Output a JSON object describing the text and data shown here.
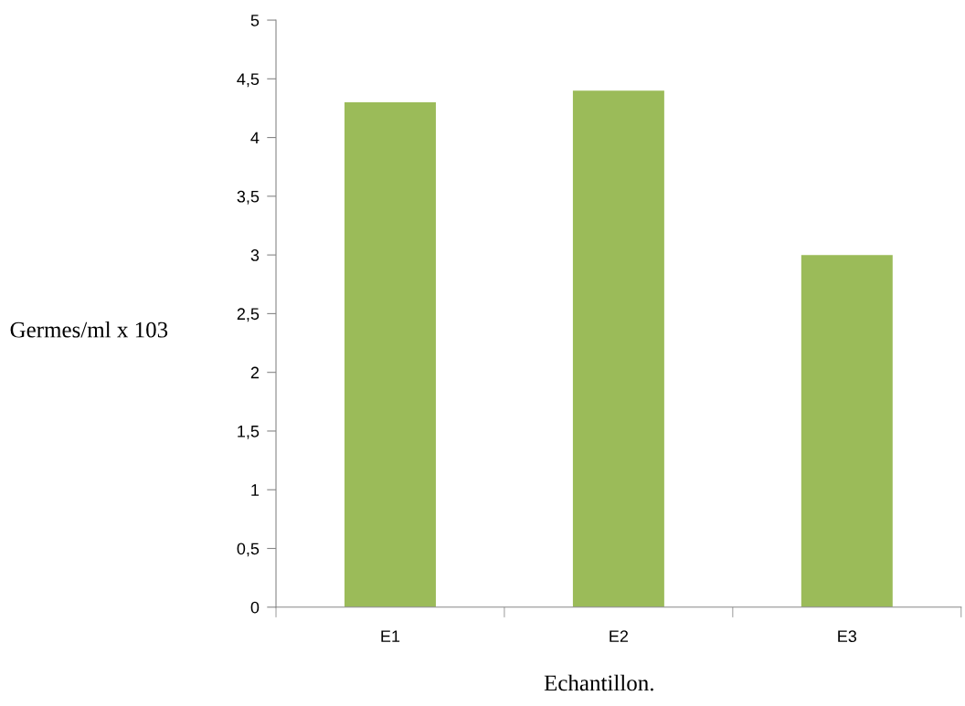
{
  "chart_data": {
    "type": "bar",
    "ylabel": "Germes/ml x 103",
    "xlabel": "Echantillon.",
    "categories": [
      "E1",
      "E2",
      "E3"
    ],
    "values": [
      4.3,
      4.4,
      3.0
    ],
    "color": "#9bbb59",
    "ylim": [
      0,
      5
    ],
    "yticks": [
      0,
      {
        "value": 0.5,
        "label": "0,5"
      },
      1,
      {
        "value": 1.5,
        "label": "1,5"
      },
      2,
      {
        "value": 2.5,
        "label": "2,5"
      },
      3,
      {
        "value": 3.5,
        "label": "3,5"
      },
      4,
      {
        "value": 4.5,
        "label": "4,5"
      },
      5
    ],
    "grid": false
  }
}
